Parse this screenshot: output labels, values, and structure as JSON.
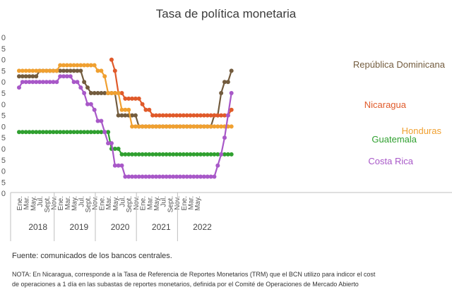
{
  "footer": {
    "source": "Fuente: comunicados de los bancos centrales.",
    "note_line1": "NOTA: En Nicaragua, corresponde a la Tasa de Referencia de Reportes Monetarios (TRM) que el BCN utilizo para indicor el cost",
    "note_line2": "de operaciones a 1 día en las subastas de reportes monetarios, definida por el Comité de Operaciones de Mercado Abierto"
  },
  "chart_data": {
    "type": "line",
    "title": "Tasa de política monetaria",
    "xlabel": "",
    "ylabel": "",
    "grid": false,
    "legend": "inline labels at right",
    "y_tick_labels": [
      "0",
      "5",
      "0",
      "5",
      "0",
      "5",
      "0",
      "5",
      "0",
      "5",
      "0",
      "5",
      "0",
      "5",
      "0"
    ],
    "x_tick_labels": [
      "Ene.",
      "Mar.",
      "May.",
      "Jul.",
      "Sept.",
      "Nov.",
      "Ene.",
      "Mar.",
      "May.",
      "Jul.",
      "Sept.",
      "Nov.",
      "Ene.",
      "Mar.",
      "May.",
      "Jul.",
      "Sept.",
      "Nov.",
      "Ene.",
      "Mar.",
      "May.",
      "Jul.",
      "Sept.",
      "Nov.",
      "Ene.",
      "Mar.",
      "May."
    ],
    "years": [
      "2018",
      "2019",
      "2020",
      "2021",
      "2022"
    ],
    "x_start": "2018-01",
    "series": [
      {
        "name": "República Dominicana",
        "color": "#735c3e",
        "values": [
          5.25,
          5.25,
          5.25,
          5.25,
          5.25,
          5.25,
          5.5,
          5.5,
          5.5,
          5.5,
          5.5,
          5.5,
          5.5,
          5.5,
          5.5,
          5.5,
          5.5,
          5.5,
          5.5,
          5.0,
          4.75,
          4.5,
          4.5,
          4.5,
          4.5,
          4.5,
          4.5,
          4.5,
          4.5,
          3.5,
          3.5,
          3.5,
          3.5,
          3.5,
          3.5,
          3.0,
          3.0,
          3.0,
          3.0,
          3.0,
          3.0,
          3.0,
          3.0,
          3.0,
          3.0,
          3.0,
          3.0,
          3.0,
          3.0,
          3.0,
          3.0,
          3.0,
          3.0,
          3.0,
          3.0,
          3.0,
          3.0,
          3.5,
          3.5,
          4.5,
          5.0,
          5.0,
          5.5
        ]
      },
      {
        "name": "Nicaragua",
        "color": "#e05a2a",
        "values": [
          null,
          null,
          null,
          null,
          null,
          null,
          null,
          null,
          null,
          null,
          null,
          null,
          null,
          null,
          null,
          null,
          null,
          null,
          null,
          null,
          null,
          null,
          null,
          null,
          null,
          null,
          null,
          6.0,
          5.5,
          4.5,
          4.5,
          4.25,
          4.25,
          4.25,
          4.25,
          4.25,
          4.0,
          3.75,
          3.75,
          3.5,
          3.5,
          3.5,
          3.5,
          3.5,
          3.5,
          3.5,
          3.5,
          3.5,
          3.5,
          3.5,
          3.5,
          3.5,
          3.5,
          3.5,
          3.5,
          3.5,
          3.5,
          3.5,
          3.5,
          3.5,
          3.5,
          3.5,
          3.75
        ]
      },
      {
        "name": "Honduras",
        "color": "#f0a030",
        "values": [
          5.5,
          5.5,
          5.5,
          5.5,
          5.5,
          5.5,
          5.5,
          5.5,
          5.5,
          5.5,
          5.5,
          5.5,
          5.75,
          5.75,
          5.75,
          5.75,
          5.75,
          5.75,
          5.75,
          5.75,
          5.75,
          5.75,
          5.75,
          5.5,
          5.5,
          5.25,
          4.5,
          4.5,
          4.5,
          4.5,
          3.75,
          3.75,
          3.75,
          3.0,
          3.0,
          3.0,
          3.0,
          3.0,
          3.0,
          3.0,
          3.0,
          3.0,
          3.0,
          3.0,
          3.0,
          3.0,
          3.0,
          3.0,
          3.0,
          3.0,
          3.0,
          3.0,
          3.0,
          3.0,
          3.0,
          3.0,
          3.0,
          3.0,
          3.0,
          3.0,
          3.0,
          3.0,
          3.0
        ]
      },
      {
        "name": "Guatemala",
        "color": "#30a030",
        "values": [
          2.75,
          2.75,
          2.75,
          2.75,
          2.75,
          2.75,
          2.75,
          2.75,
          2.75,
          2.75,
          2.75,
          2.75,
          2.75,
          2.75,
          2.75,
          2.75,
          2.75,
          2.75,
          2.75,
          2.75,
          2.75,
          2.75,
          2.75,
          2.75,
          2.75,
          2.75,
          2.75,
          2.0,
          2.0,
          2.0,
          1.75,
          1.75,
          1.75,
          1.75,
          1.75,
          1.75,
          1.75,
          1.75,
          1.75,
          1.75,
          1.75,
          1.75,
          1.75,
          1.75,
          1.75,
          1.75,
          1.75,
          1.75,
          1.75,
          1.75,
          1.75,
          1.75,
          1.75,
          1.75,
          1.75,
          1.75,
          1.75,
          1.75,
          1.75,
          1.75,
          1.75,
          1.75,
          1.75
        ]
      },
      {
        "name": "Costa Rica",
        "color": "#a858c8",
        "values": [
          4.75,
          5.0,
          5.0,
          5.0,
          5.0,
          5.0,
          5.0,
          5.0,
          5.0,
          5.0,
          5.0,
          5.0,
          5.25,
          5.25,
          5.25,
          5.25,
          5.0,
          5.0,
          4.75,
          4.5,
          4.0,
          4.0,
          3.75,
          3.25,
          3.25,
          2.75,
          2.25,
          2.25,
          1.25,
          1.25,
          1.25,
          0.75,
          0.75,
          0.75,
          0.75,
          0.75,
          0.75,
          0.75,
          0.75,
          0.75,
          0.75,
          0.75,
          0.75,
          0.75,
          0.75,
          0.75,
          0.75,
          0.75,
          0.75,
          0.75,
          0.75,
          0.75,
          0.75,
          0.75,
          0.75,
          0.75,
          0.75,
          0.75,
          1.25,
          1.75,
          2.5,
          3.5,
          4.5
        ]
      }
    ],
    "series_label_colors": [
      "#735c3e",
      "#e05a2a",
      "#f0a030",
      "#30a030",
      "#a858c8"
    ],
    "axis_color": "#bfbfbf"
  }
}
